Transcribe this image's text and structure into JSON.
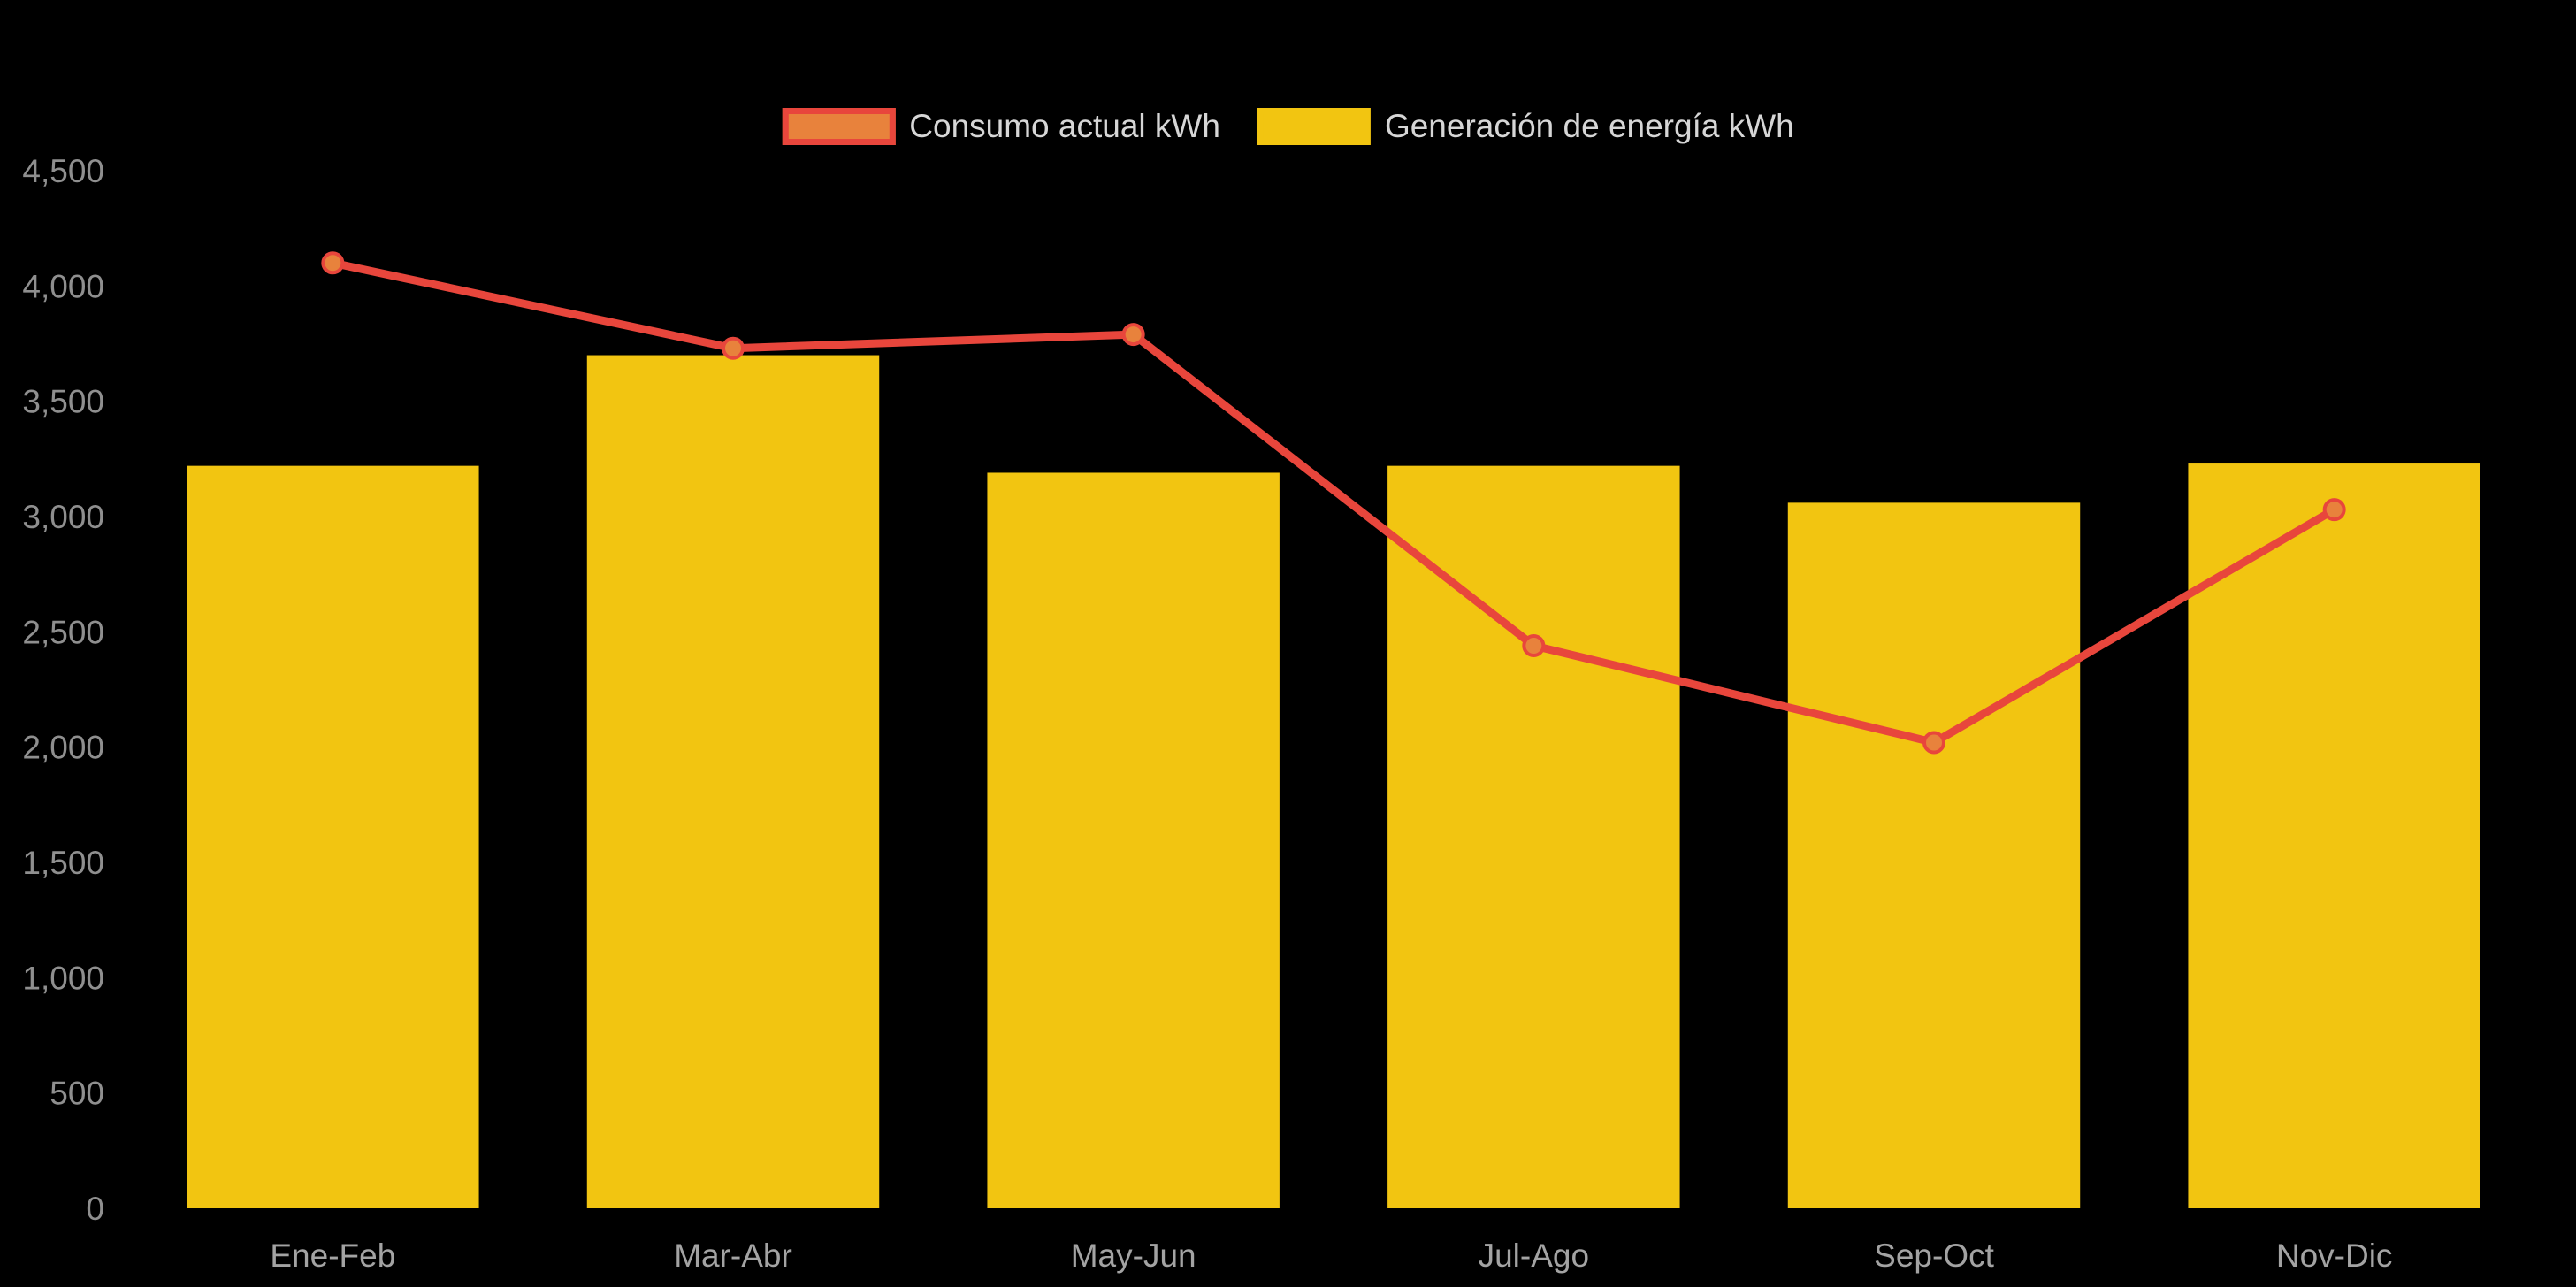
{
  "chart_data": {
    "type": "bar",
    "categories": [
      "Ene-Feb",
      "Mar-Abr",
      "May-Jun",
      "Jul-Ago",
      "Sep-Oct",
      "Nov-Dic"
    ],
    "series": [
      {
        "name": "Consumo actual kWh",
        "type": "line",
        "values": [
          4100,
          3730,
          3790,
          2440,
          2020,
          3030
        ],
        "line_color": "#E8463C",
        "marker_fill": "#E8823C",
        "marker_stroke": "#E8463C"
      },
      {
        "name": "Generación de energía kWh",
        "type": "bar",
        "values": [
          3220,
          3700,
          3190,
          3220,
          3060,
          3230
        ],
        "color": "#F2C511"
      }
    ],
    "title": "",
    "xlabel": "",
    "ylabel": "",
    "ylim": [
      0,
      4500
    ],
    "ytick_step": 500,
    "grid": false,
    "legend_position": "top",
    "background": "#000000"
  },
  "axis": {
    "y_ticks": [
      "0",
      "500",
      "1,000",
      "1,500",
      "2,000",
      "2,500",
      "3,000",
      "3,500",
      "4,000",
      "4,500"
    ],
    "x_labels": [
      "Ene-Feb",
      "Mar-Abr",
      "May-Jun",
      "Jul-Ago",
      "Sep-Oct",
      "Nov-Dic"
    ],
    "y_label_color": "#8F8F8F",
    "x_label_color": "#A3A3A3"
  },
  "legend": {
    "items": [
      {
        "label": "Consumo actual kWh",
        "swatch_fill": "#E8823C",
        "swatch_border": "#E8463C"
      },
      {
        "label": "Generación de energía kWh",
        "swatch_fill": "#F2C511",
        "swatch_border": "#F2C511"
      }
    ],
    "text_color": "#D6D6D6"
  }
}
